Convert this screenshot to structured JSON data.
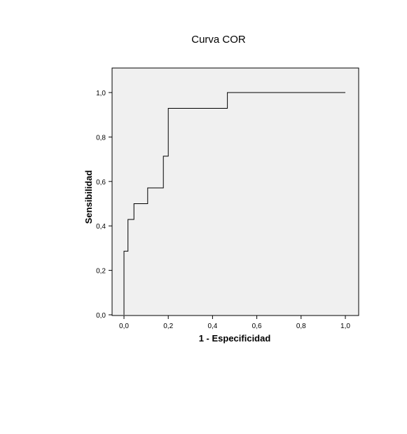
{
  "chart_data": {
    "type": "line",
    "title": "Curva COR",
    "xlabel": "1 - Especificidad",
    "ylabel": "Sensibilidad",
    "xlim": [
      0.0,
      1.0
    ],
    "ylim": [
      0.0,
      1.0
    ],
    "x_ticks": [
      "0,0",
      "0,2",
      "0,4",
      "0,6",
      "0,8",
      "1,0"
    ],
    "y_ticks": [
      "0,0",
      "0,2",
      "0,4",
      "0,6",
      "0,8",
      "1,0"
    ],
    "grid": false,
    "plot_background": "#f0f0f0",
    "line_color": "#000000",
    "series": [
      {
        "x": [
          0.0,
          0.0,
          0.018,
          0.018,
          0.045,
          0.045,
          0.107,
          0.107,
          0.178,
          0.178,
          0.2,
          0.2,
          0.467,
          0.467,
          1.0
        ],
        "y": [
          0.0,
          0.286,
          0.286,
          0.429,
          0.429,
          0.5,
          0.5,
          0.571,
          0.571,
          0.714,
          0.714,
          0.929,
          0.929,
          1.0,
          1.0
        ]
      }
    ]
  }
}
